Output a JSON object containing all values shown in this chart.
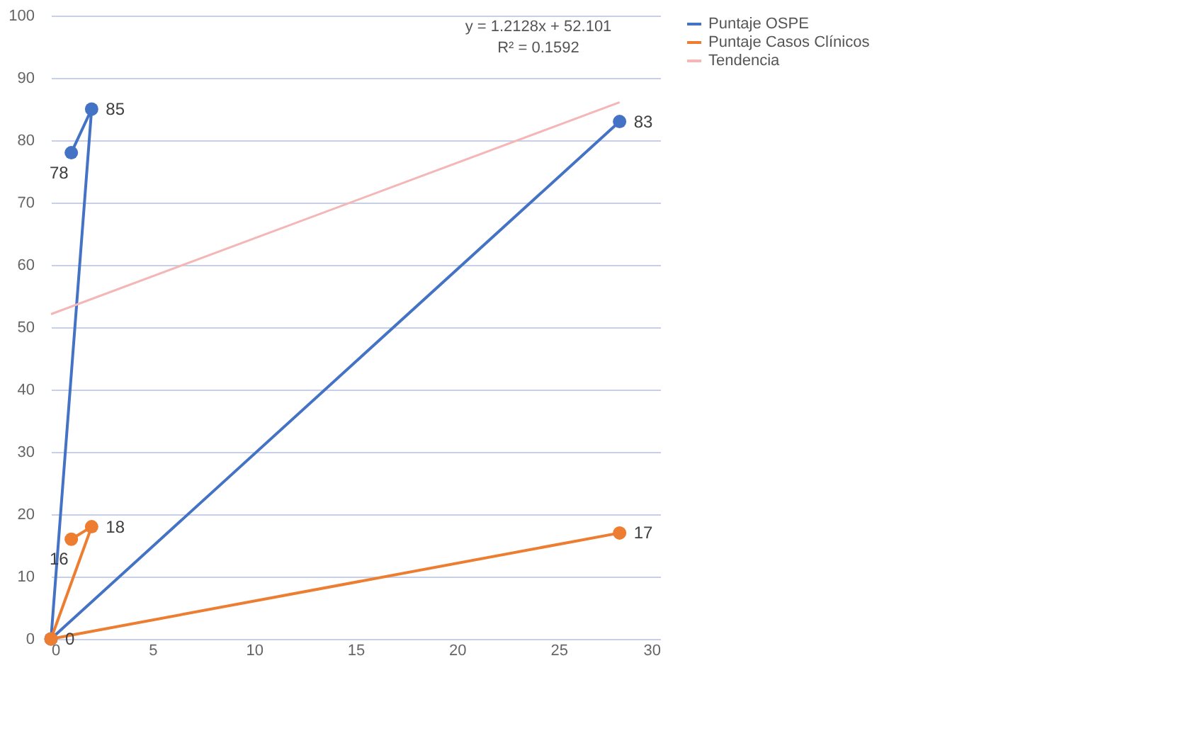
{
  "chart_data": {
    "type": "line",
    "xlim": [
      0,
      30
    ],
    "xticks": [
      0,
      5,
      10,
      15,
      20,
      25,
      30
    ],
    "ylim": [
      0,
      100
    ],
    "yticks": [
      0,
      10,
      20,
      30,
      40,
      50,
      60,
      70,
      80,
      90,
      100
    ],
    "grid": "y",
    "legend": "right",
    "marker": "circle",
    "line_style": "solid",
    "series": [
      {
        "name": "Puntaje OSPE",
        "color": "#4472c4",
        "x": [
          1,
          2,
          0,
          28
        ],
        "values": [
          78,
          85,
          0,
          83
        ],
        "value_labels": [
          "78",
          "85",
          null,
          "83"
        ]
      },
      {
        "name": "Puntaje Casos Clínicos",
        "color": "#ed7d31",
        "x": [
          1,
          2,
          0,
          28
        ],
        "values": [
          16,
          18,
          0,
          17
        ],
        "value_labels": [
          "16",
          "18",
          "0",
          "17"
        ]
      },
      {
        "name": "Tendencia",
        "type": "line",
        "marker": "none",
        "color": "#f4b6b6",
        "x": [
          0,
          28
        ],
        "values": [
          52.1,
          86.1
        ]
      }
    ],
    "annotations": [
      "y = 1.2128x + 52.101",
      "R² = 0.1592"
    ]
  }
}
